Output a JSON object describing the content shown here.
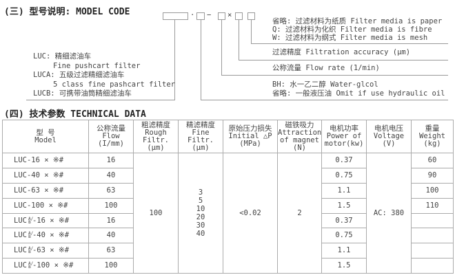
{
  "model_code": {
    "title": "(三) 型号说明: MODEL CODE",
    "separators": {
      "dot": "·",
      "dash": "−",
      "times": "×"
    },
    "media": [
      "省略:  过滤材料为纸质 Filter media is paper",
      "Q: 过滤材料为化织 Filter media is fibre",
      "W: 过滤材料为纲式 Filter media is mesh"
    ],
    "accuracy": "过滤精度 Filtration accuracy (μm)",
    "flow": "公称流量 Flow rate (1/min)",
    "fluid": [
      "BH: 水一乙二醇 Water-glcol",
      "省略: 一般液压油 Omit if use hydraulic oil"
    ],
    "types": [
      "LUC: 精细滤油车",
      "Fine pushcart filter",
      "LUCA: 五级过滤精细滤油车",
      "5 class fine pashcart filter",
      "LUCB: 可携带油筒精细滤油车"
    ]
  },
  "technical": {
    "title": "(四) 技术参数  TECHNICAL DATA",
    "headers": [
      [
        "型  号",
        "Model"
      ],
      [
        "公称流量",
        "Flow",
        "(I/mm)"
      ],
      [
        "粗滤精度",
        "Rough Filtr.",
        "(μm)"
      ],
      [
        "精滤精度",
        "Fine Filtr.",
        "(μm)"
      ],
      [
        "原始压力损失",
        "Initial △P",
        "(MPa)"
      ],
      [
        "磁铁吸力",
        "Attraction",
        "of magnet",
        "(N)"
      ],
      [
        "电机功率",
        "Power of",
        "motor(kw)"
      ],
      [
        "电机电压",
        "Voltage",
        "(V)"
      ],
      [
        "重量",
        "Weight",
        "(kg)"
      ]
    ],
    "rows": [
      {
        "prefix": "LUC",
        "sub": "",
        "model": "-16 × ※#",
        "flow": "16",
        "power": "0.37",
        "weight": "60"
      },
      {
        "prefix": "LUC",
        "sub": "",
        "model": "-40 × ※#",
        "flow": "40",
        "power": "0.75",
        "weight": "90"
      },
      {
        "prefix": "LUC",
        "sub": "",
        "model": "-63 × ※#",
        "flow": "63",
        "power": "1.1",
        "weight": "100"
      },
      {
        "prefix": "LUC",
        "sub": "",
        "model": "-100 × ※#",
        "flow": "100",
        "power": "1.5",
        "weight": "110"
      },
      {
        "prefix": "LUC",
        "sub": "A/B",
        "model": "-16 × ※#",
        "flow": "16",
        "power": "0.37",
        "weight": ""
      },
      {
        "prefix": "LUC",
        "sub": "A/B",
        "model": "-40 × ※#",
        "flow": "40",
        "power": "0.75",
        "weight": ""
      },
      {
        "prefix": "LUC",
        "sub": "A/B",
        "model": "-63 × ※#",
        "flow": "63",
        "power": "1.1",
        "weight": ""
      },
      {
        "prefix": "LUC",
        "sub": "A/B",
        "model": "-100 × ※#",
        "flow": "100",
        "power": "1.5",
        "weight": ""
      }
    ],
    "rough": "100",
    "fine": [
      "3",
      "5",
      "10",
      "20",
      "30",
      "40"
    ],
    "initial_dp": "<0.02",
    "magnet": "2",
    "voltage": "AC: 380"
  }
}
